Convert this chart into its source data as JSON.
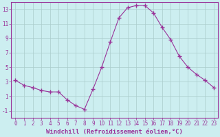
{
  "x": [
    0,
    1,
    2,
    3,
    4,
    5,
    6,
    7,
    8,
    9,
    10,
    11,
    12,
    13,
    14,
    15,
    16,
    17,
    18,
    19,
    20,
    21,
    22,
    23
  ],
  "y": [
    3.2,
    2.5,
    2.2,
    1.8,
    1.6,
    1.6,
    0.5,
    -0.3,
    -0.8,
    2.0,
    5.0,
    8.5,
    11.8,
    13.2,
    13.5,
    13.5,
    12.5,
    10.5,
    8.8,
    6.5,
    5.0,
    4.0,
    3.2,
    2.2
  ],
  "line_color": "#993399",
  "marker": "+",
  "marker_size": 4,
  "bg_color": "#cceef0",
  "grid_color": "#aacccc",
  "xlabel": "Windchill (Refroidissement éolien,°C)",
  "xlabel_color": "#993399",
  "tick_color": "#993399",
  "ylim": [
    -2,
    14
  ],
  "xlim": [
    -0.5,
    23.5
  ],
  "yticks": [
    -1,
    1,
    3,
    5,
    7,
    9,
    11,
    13
  ],
  "xticks": [
    0,
    1,
    2,
    3,
    4,
    5,
    6,
    7,
    8,
    9,
    10,
    11,
    12,
    13,
    14,
    15,
    16,
    17,
    18,
    19,
    20,
    21,
    22,
    23
  ],
  "tick_fontsize": 5.5,
  "xlabel_fontsize": 6.5,
  "spine_color": "#993399"
}
